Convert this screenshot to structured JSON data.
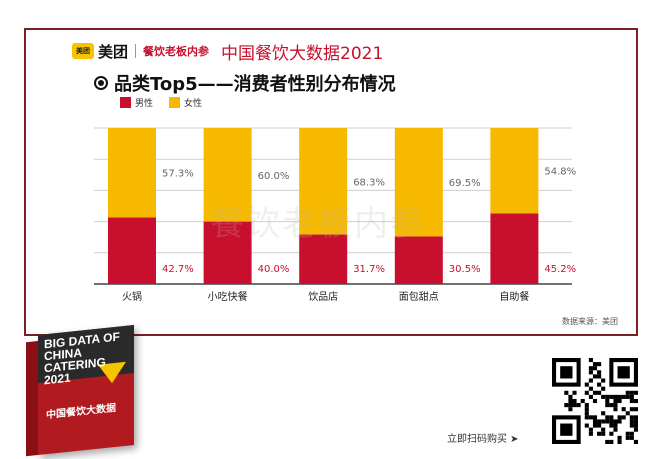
{
  "header": {
    "logo_badge": "美团",
    "logo_text": "美团",
    "brand2": "餐饮老板内参",
    "report_title": "中国餐饮大数据2021"
  },
  "subtitle": "品类Top5——消费者性别分布情况",
  "watermark": "餐饮老板内参",
  "source": "数据来源：美团",
  "book": {
    "en_title": "BIG DATA OF CHINA CATERING 2021",
    "cn_title": "中国餐饮大数据"
  },
  "buy_text": "立即扫码购买 ➤",
  "colors": {
    "male": "#c8102e",
    "female": "#f6b900",
    "frame": "#7a1f23"
  },
  "chart_data": {
    "type": "bar",
    "stacked": true,
    "categories": [
      "火锅",
      "小吃快餐",
      "饮品店",
      "面包甜点",
      "自助餐"
    ],
    "series": [
      {
        "name": "男性",
        "values": [
          42.7,
          40.0,
          31.7,
          30.5,
          45.2
        ],
        "labels": [
          "42.7%",
          "40.0%",
          "31.7%",
          "30.5%",
          "45.2%"
        ]
      },
      {
        "name": "女性",
        "values": [
          57.3,
          60.0,
          68.3,
          69.5,
          54.8
        ],
        "labels": [
          "57.3%",
          "60.0%",
          "68.3%",
          "69.5%",
          "54.8%"
        ]
      }
    ],
    "ylim": [
      0,
      100
    ],
    "grid": true,
    "legend": "top-left"
  }
}
